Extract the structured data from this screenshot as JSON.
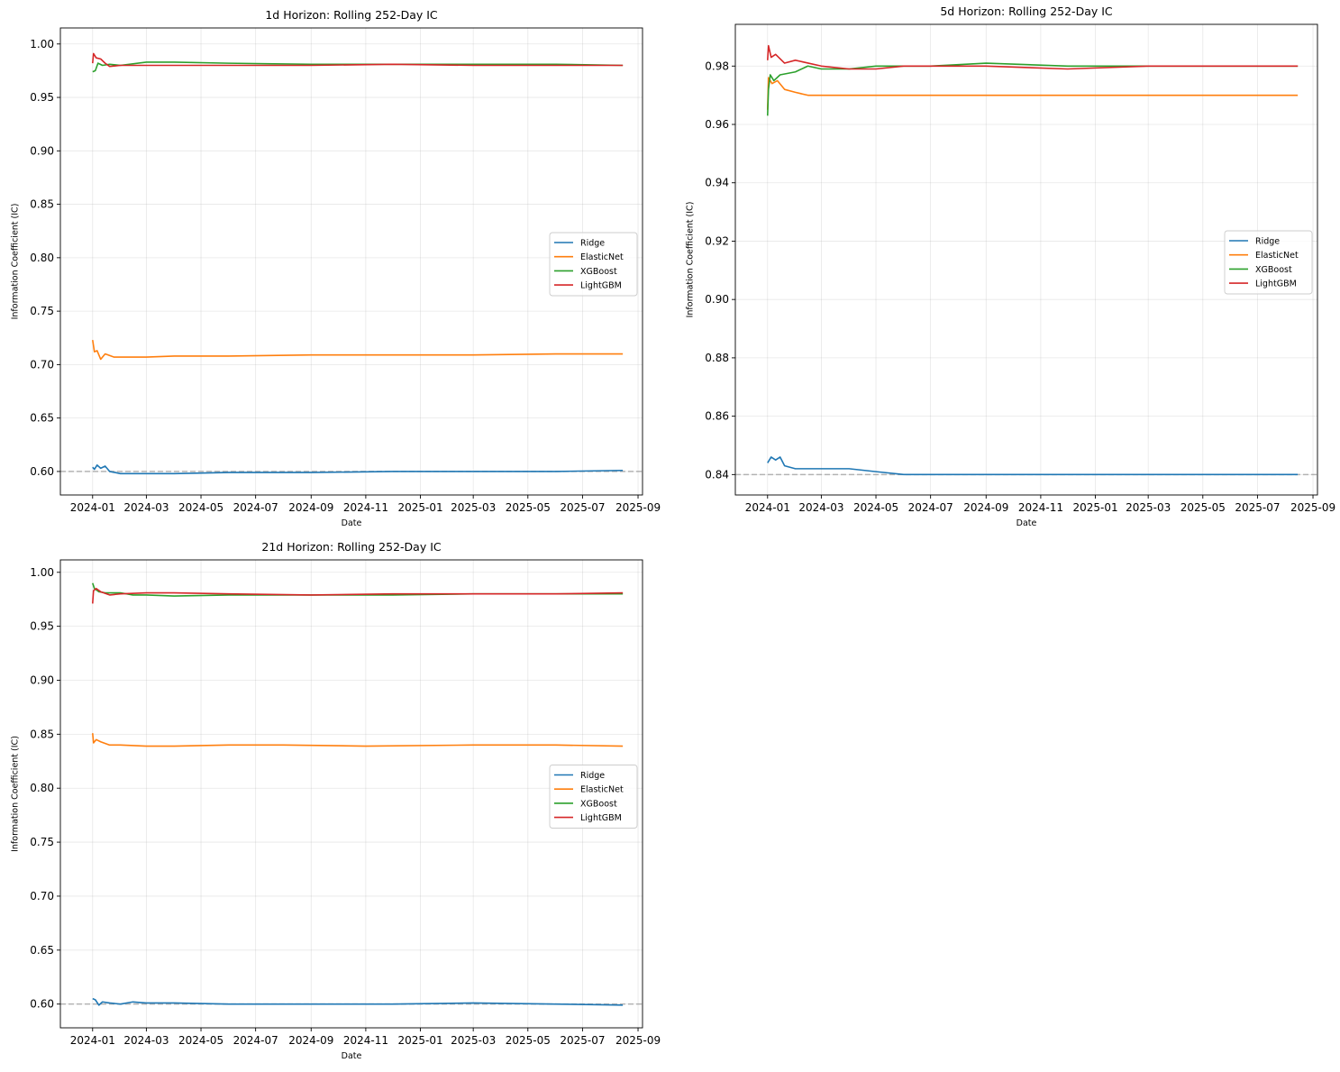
{
  "chart_data": [
    {
      "type": "line",
      "title": "1d Horizon: Rolling 252-Day IC",
      "xlabel": "Date",
      "ylabel": "Information Coefficient (IC)",
      "xlim": [
        "2023-11-26",
        "2025-09-06"
      ],
      "ylim": [
        0.578,
        1.015
      ],
      "yticks": [
        0.6,
        0.65,
        0.7,
        0.75,
        0.8,
        0.85,
        0.9,
        0.95,
        1.0
      ],
      "xticks": [
        "2024-01",
        "2024-03",
        "2024-05",
        "2024-07",
        "2024-09",
        "2024-11",
        "2025-01",
        "2025-03",
        "2025-05",
        "2025-07",
        "2025-09"
      ],
      "reference_line": 0.6,
      "grid": true,
      "legend": "center-right",
      "series": [
        {
          "name": "Ridge",
          "color": "#1f77b4",
          "x": [
            "2024-01-01",
            "2024-01-03",
            "2024-01-06",
            "2024-01-10",
            "2024-01-15",
            "2024-01-20",
            "2024-02-01",
            "2024-03-01",
            "2024-04-01",
            "2024-06-01",
            "2024-09-01",
            "2024-12-01",
            "2025-03-01",
            "2025-06-01",
            "2025-08-15"
          ],
          "y": [
            0.604,
            0.602,
            0.606,
            0.603,
            0.605,
            0.6,
            0.598,
            0.598,
            0.598,
            0.599,
            0.599,
            0.6,
            0.6,
            0.6,
            0.601
          ]
        },
        {
          "name": "ElasticNet",
          "color": "#ff7f0e",
          "x": [
            "2024-01-01",
            "2024-01-03",
            "2024-01-06",
            "2024-01-10",
            "2024-01-15",
            "2024-01-25",
            "2024-02-10",
            "2024-03-01",
            "2024-04-01",
            "2024-06-01",
            "2024-09-01",
            "2024-12-01",
            "2025-03-01",
            "2025-06-01",
            "2025-08-15"
          ],
          "y": [
            0.723,
            0.712,
            0.713,
            0.705,
            0.71,
            0.707,
            0.707,
            0.707,
            0.708,
            0.708,
            0.709,
            0.709,
            0.709,
            0.71,
            0.71
          ]
        },
        {
          "name": "XGBoost",
          "color": "#2ca02c",
          "x": [
            "2024-01-01",
            "2024-01-04",
            "2024-01-07",
            "2024-01-12",
            "2024-01-20",
            "2024-02-01",
            "2024-03-01",
            "2024-04-01",
            "2024-06-01",
            "2024-09-01",
            "2024-12-01",
            "2025-03-01",
            "2025-06-01",
            "2025-08-15"
          ],
          "y": [
            0.974,
            0.975,
            0.982,
            0.98,
            0.981,
            0.98,
            0.983,
            0.983,
            0.982,
            0.981,
            0.981,
            0.981,
            0.981,
            0.98
          ]
        },
        {
          "name": "LightGBM",
          "color": "#d62728",
          "x": [
            "2024-01-01",
            "2024-01-02",
            "2024-01-05",
            "2024-01-10",
            "2024-01-15",
            "2024-01-20",
            "2024-02-01",
            "2024-03-01",
            "2024-04-01",
            "2024-06-01",
            "2024-09-01",
            "2024-12-01",
            "2025-03-01",
            "2025-06-01",
            "2025-08-15"
          ],
          "y": [
            0.982,
            0.991,
            0.987,
            0.986,
            0.982,
            0.979,
            0.98,
            0.98,
            0.98,
            0.98,
            0.98,
            0.981,
            0.98,
            0.98,
            0.98
          ]
        }
      ]
    },
    {
      "type": "line",
      "title": "5d Horizon: Rolling 252-Day IC",
      "xlabel": "Date",
      "ylabel": "Information Coefficient (IC)",
      "xlim": [
        "2023-11-26",
        "2025-09-06"
      ],
      "ylim": [
        0.833,
        0.9943
      ],
      "yticks": [
        0.84,
        0.86,
        0.88,
        0.9,
        0.92,
        0.94,
        0.96,
        0.98
      ],
      "xticks": [
        "2024-01",
        "2024-03",
        "2024-05",
        "2024-07",
        "2024-09",
        "2024-11",
        "2025-01",
        "2025-03",
        "2025-05",
        "2025-07",
        "2025-09"
      ],
      "reference_line": 0.84,
      "grid": true,
      "legend": "center-right",
      "series": [
        {
          "name": "Ridge",
          "color": "#1f77b4",
          "x": [
            "2024-01-01",
            "2024-01-05",
            "2024-01-10",
            "2024-01-15",
            "2024-01-20",
            "2024-02-01",
            "2024-03-01",
            "2024-04-01",
            "2024-05-01",
            "2024-06-01",
            "2024-07-01",
            "2024-09-01",
            "2024-12-01",
            "2025-03-01",
            "2025-06-01",
            "2025-08-15"
          ],
          "y": [
            0.844,
            0.846,
            0.845,
            0.846,
            0.843,
            0.842,
            0.842,
            0.842,
            0.841,
            0.84,
            0.84,
            0.84,
            0.84,
            0.84,
            0.84,
            0.84
          ]
        },
        {
          "name": "ElasticNet",
          "color": "#ff7f0e",
          "x": [
            "2024-01-01",
            "2024-01-02",
            "2024-01-06",
            "2024-01-12",
            "2024-01-20",
            "2024-02-01",
            "2024-02-15",
            "2024-03-01",
            "2024-04-01",
            "2024-06-01",
            "2024-09-01",
            "2024-12-01",
            "2025-03-01",
            "2025-06-01",
            "2025-08-15"
          ],
          "y": [
            0.965,
            0.976,
            0.974,
            0.975,
            0.972,
            0.971,
            0.97,
            0.97,
            0.97,
            0.97,
            0.97,
            0.97,
            0.97,
            0.97,
            0.97
          ]
        },
        {
          "name": "XGBoost",
          "color": "#2ca02c",
          "x": [
            "2024-01-01",
            "2024-01-02",
            "2024-01-04",
            "2024-01-08",
            "2024-01-15",
            "2024-02-01",
            "2024-02-15",
            "2024-03-01",
            "2024-04-01",
            "2024-05-01",
            "2024-07-01",
            "2024-09-01",
            "2024-12-01",
            "2025-03-01",
            "2025-06-01",
            "2025-08-15"
          ],
          "y": [
            0.963,
            0.972,
            0.977,
            0.975,
            0.977,
            0.978,
            0.98,
            0.979,
            0.979,
            0.98,
            0.98,
            0.981,
            0.98,
            0.98,
            0.98,
            0.98
          ]
        },
        {
          "name": "LightGBM",
          "color": "#d62728",
          "x": [
            "2024-01-01",
            "2024-01-02",
            "2024-01-05",
            "2024-01-10",
            "2024-01-20",
            "2024-02-01",
            "2024-03-01",
            "2024-04-01",
            "2024-05-01",
            "2024-06-01",
            "2024-09-01",
            "2024-12-01",
            "2025-03-01",
            "2025-06-01",
            "2025-08-15"
          ],
          "y": [
            0.982,
            0.987,
            0.983,
            0.984,
            0.981,
            0.982,
            0.98,
            0.979,
            0.979,
            0.98,
            0.98,
            0.979,
            0.98,
            0.98,
            0.98
          ]
        }
      ]
    },
    {
      "type": "line",
      "title": "21d Horizon: Rolling 252-Day IC",
      "xlabel": "Date",
      "ylabel": "Information Coefficient (IC)",
      "xlim": [
        "2023-11-26",
        "2025-09-06"
      ],
      "ylim": [
        0.578,
        1.0115
      ],
      "yticks": [
        0.6,
        0.65,
        0.7,
        0.75,
        0.8,
        0.85,
        0.9,
        0.95,
        1.0
      ],
      "xticks": [
        "2024-01",
        "2024-03",
        "2024-05",
        "2024-07",
        "2024-09",
        "2024-11",
        "2025-01",
        "2025-03",
        "2025-05",
        "2025-07",
        "2025-09"
      ],
      "reference_line": 0.6,
      "grid": true,
      "legend": "center-right",
      "series": [
        {
          "name": "Ridge",
          "color": "#1f77b4",
          "x": [
            "2024-01-01",
            "2024-01-04",
            "2024-01-08",
            "2024-01-12",
            "2024-01-20",
            "2024-02-01",
            "2024-02-15",
            "2024-03-01",
            "2024-04-01",
            "2024-06-01",
            "2024-09-01",
            "2024-12-01",
            "2025-03-01",
            "2025-06-01",
            "2025-08-15"
          ],
          "y": [
            0.605,
            0.604,
            0.599,
            0.602,
            0.601,
            0.6,
            0.602,
            0.601,
            0.601,
            0.6,
            0.6,
            0.6,
            0.601,
            0.6,
            0.599
          ]
        },
        {
          "name": "ElasticNet",
          "color": "#ff7f0e",
          "x": [
            "2024-01-01",
            "2024-01-02",
            "2024-01-05",
            "2024-01-10",
            "2024-01-20",
            "2024-02-01",
            "2024-03-01",
            "2024-04-01",
            "2024-06-01",
            "2024-08-01",
            "2024-11-01",
            "2025-03-01",
            "2025-06-01",
            "2025-08-15"
          ],
          "y": [
            0.851,
            0.842,
            0.845,
            0.843,
            0.84,
            0.84,
            0.839,
            0.839,
            0.84,
            0.84,
            0.839,
            0.84,
            0.84,
            0.839
          ]
        },
        {
          "name": "XGBoost",
          "color": "#2ca02c",
          "x": [
            "2024-01-01",
            "2024-01-03",
            "2024-01-08",
            "2024-01-15",
            "2024-02-01",
            "2024-02-15",
            "2024-03-01",
            "2024-04-01",
            "2024-06-01",
            "2024-09-01",
            "2024-12-01",
            "2025-03-01",
            "2025-06-01",
            "2025-08-15"
          ],
          "y": [
            0.99,
            0.985,
            0.982,
            0.981,
            0.981,
            0.979,
            0.979,
            0.978,
            0.979,
            0.979,
            0.979,
            0.98,
            0.98,
            0.98
          ]
        },
        {
          "name": "LightGBM",
          "color": "#d62728",
          "x": [
            "2024-01-01",
            "2024-01-02",
            "2024-01-05",
            "2024-01-10",
            "2024-01-20",
            "2024-02-01",
            "2024-03-01",
            "2024-04-01",
            "2024-06-01",
            "2024-09-01",
            "2024-12-01",
            "2025-03-01",
            "2025-06-01",
            "2025-08-15"
          ],
          "y": [
            0.971,
            0.983,
            0.985,
            0.982,
            0.979,
            0.98,
            0.981,
            0.981,
            0.98,
            0.979,
            0.98,
            0.98,
            0.98,
            0.981
          ]
        }
      ]
    }
  ]
}
